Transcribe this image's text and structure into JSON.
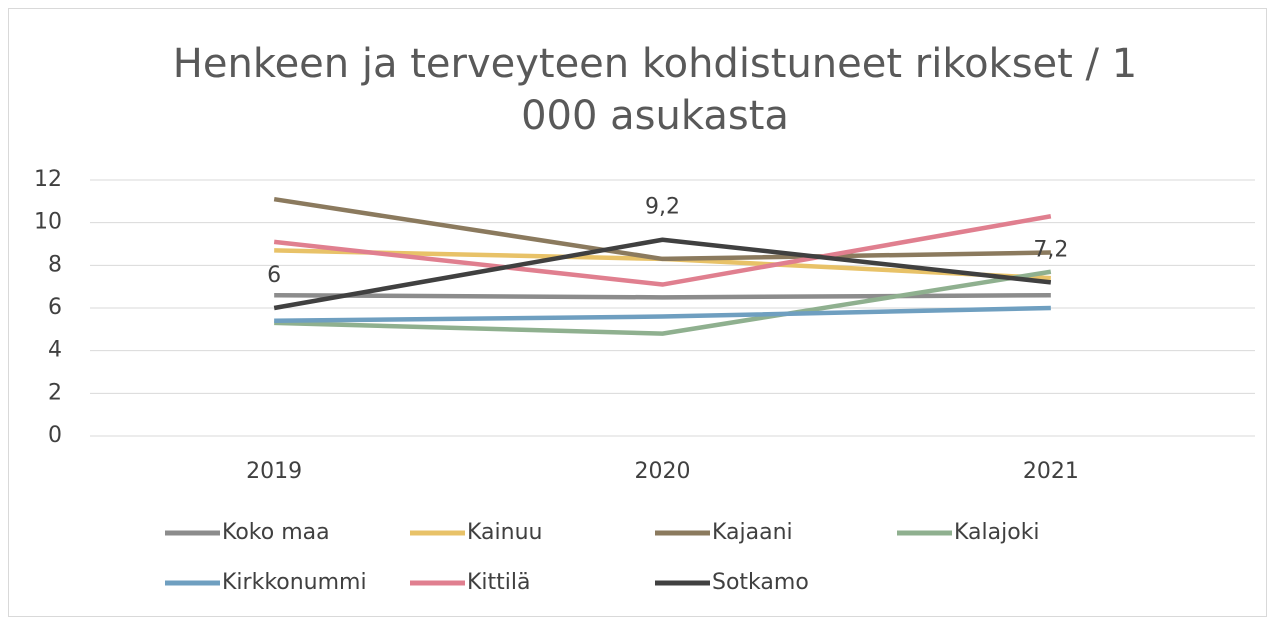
{
  "chart_data": {
    "type": "line",
    "title": "Henkeen ja terveyteen kohdistuneet rikokset / 1 000 asukasta",
    "categories": [
      "2019",
      "2020",
      "2021"
    ],
    "series": [
      {
        "name": "Koko maa",
        "color": "#8c8c8c",
        "values": [
          6.6,
          6.5,
          6.6
        ]
      },
      {
        "name": "Kainuu",
        "color": "#e8c268",
        "values": [
          8.7,
          8.3,
          7.4
        ]
      },
      {
        "name": "Kajaani",
        "color": "#8b7a5e",
        "values": [
          11.1,
          8.3,
          8.6
        ]
      },
      {
        "name": "Kalajoki",
        "color": "#8fb08f",
        "values": [
          5.3,
          4.8,
          7.7
        ]
      },
      {
        "name": "Kirkkonummi",
        "color": "#6f9fc0",
        "values": [
          5.4,
          5.6,
          6.0
        ]
      },
      {
        "name": "Kittilä",
        "color": "#e07f8f",
        "values": [
          9.1,
          7.1,
          10.3
        ]
      },
      {
        "name": "Sotkamo",
        "color": "#404040",
        "values": [
          6,
          9.2,
          7.2
        ],
        "value_labels": [
          "6",
          "9,2",
          "7,2"
        ]
      }
    ],
    "ylim": [
      0,
      12
    ],
    "yticks": [
      0,
      2,
      4,
      6,
      8,
      10,
      12
    ],
    "grid": true,
    "legend": "bottom"
  }
}
